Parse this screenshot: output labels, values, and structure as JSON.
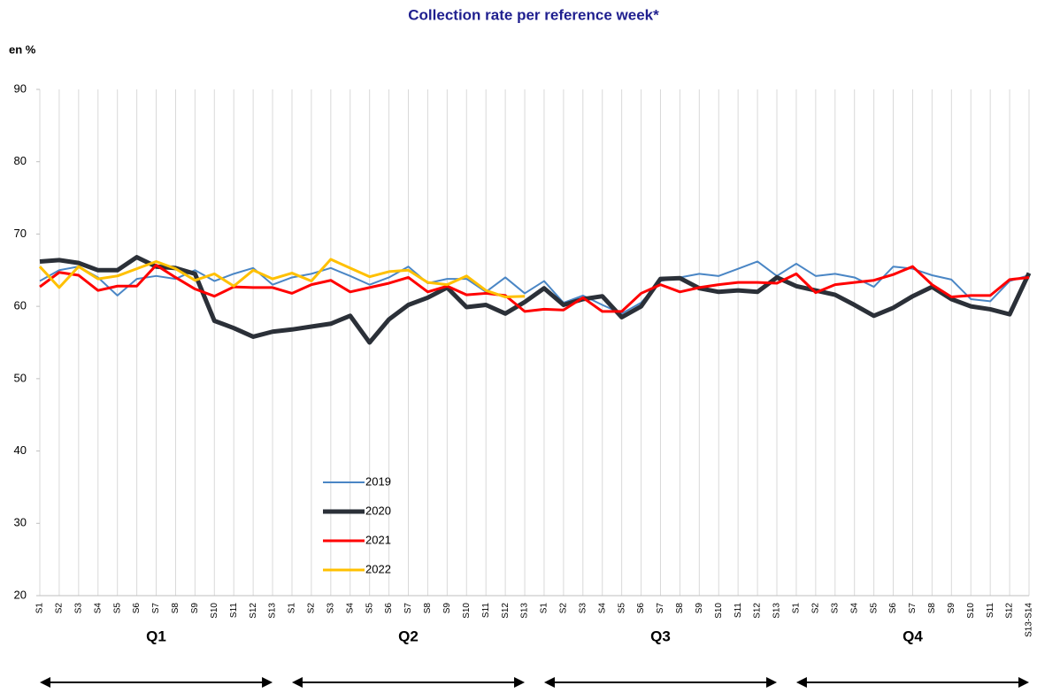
{
  "chart_data": {
    "type": "line",
    "title": "Collection rate per reference week*",
    "y_unit_label": "en %",
    "categories": [
      "S1",
      "S2",
      "S3",
      "S4",
      "S5",
      "S6",
      "S7",
      "S8",
      "S9",
      "S10",
      "S11",
      "S12",
      "S13",
      "S1",
      "S2",
      "S3",
      "S4",
      "S5",
      "S6",
      "S7",
      "S8",
      "S9",
      "S10",
      "S11",
      "S12",
      "S13",
      "S1",
      "S2",
      "S3",
      "S4",
      "S5",
      "S6",
      "S7",
      "S8",
      "S9",
      "S10",
      "S11",
      "S12",
      "S13",
      "S1",
      "S2",
      "S3",
      "S4",
      "S5",
      "S6",
      "S7",
      "S8",
      "S9",
      "S10",
      "S11",
      "S12",
      "S13-S14"
    ],
    "quarters": [
      "Q1",
      "Q2",
      "Q3",
      "Q4"
    ],
    "ylim": [
      20,
      90
    ],
    "yticks": [
      20,
      30,
      40,
      50,
      60,
      70,
      80,
      90
    ],
    "grid": "x",
    "series": [
      {
        "name": "2019",
        "color": "#4a86c5",
        "width": 2,
        "values": [
          63.5,
          65,
          65.5,
          64,
          61.5,
          63.8,
          64.2,
          63.8,
          65,
          63.5,
          64.5,
          65.3,
          63,
          64,
          64.5,
          65.3,
          64.2,
          63,
          64,
          65.5,
          63.2,
          63.8,
          63.8,
          62,
          64,
          61.8,
          63.5,
          60.5,
          61.5,
          60.2,
          59,
          60.5,
          63.5,
          64,
          64.5,
          64.2,
          65.2,
          66.2,
          64.2,
          65.9,
          64.2,
          64.5,
          64,
          62.7,
          65.5,
          65.2,
          64.3,
          63.7,
          61,
          60.7,
          63.5,
          64.3
        ]
      },
      {
        "name": "2020",
        "color": "#2b3038",
        "width": 5,
        "values": [
          66.2,
          66.4,
          66,
          65,
          65,
          66.8,
          65.5,
          65.3,
          64.5,
          58,
          57,
          55.8,
          56.5,
          56.8,
          57.2,
          57.6,
          58.7,
          55,
          58.2,
          60.2,
          61.2,
          62.6,
          59.9,
          60.2,
          59,
          60.6,
          62.5,
          60.2,
          61,
          61.4,
          58.5,
          60,
          63.8,
          63.9,
          62.5,
          62,
          62.2,
          62,
          64,
          62.8,
          62.2,
          61.6,
          60.2,
          58.7,
          59.8,
          61.4,
          62.7,
          61,
          60,
          59.6,
          58.9,
          64.6
        ]
      },
      {
        "name": "2021",
        "color": "#ff0000",
        "width": 3,
        "values": [
          62.7,
          64.7,
          64.3,
          62.2,
          62.8,
          62.8,
          65.7,
          64,
          62.4,
          61.4,
          62.7,
          62.6,
          62.6,
          61.8,
          63,
          63.6,
          62,
          62.6,
          63.2,
          64,
          62,
          62.8,
          61.6,
          61.8,
          61.5,
          59.3,
          59.6,
          59.5,
          61.2,
          59.3,
          59.3,
          61.8,
          63,
          62,
          62.6,
          63,
          63.3,
          63.3,
          63.2,
          64.5,
          61.9,
          63,
          63.3,
          63.6,
          64.4,
          65.5,
          63,
          61.3,
          61.5,
          61.5,
          63.7,
          64
        ]
      },
      {
        "name": "2022",
        "color": "#ffc000",
        "width": 3,
        "values": [
          65.5,
          62.6,
          65.5,
          63.8,
          64.2,
          65.2,
          66.2,
          65.2,
          63.6,
          64.5,
          62.8,
          65,
          63.8,
          64.6,
          63.5,
          66.5,
          65.3,
          64.1,
          64.8,
          65,
          63.3,
          63,
          64.2,
          62.2,
          61.3,
          61.4,
          null,
          null,
          null,
          null,
          null,
          null,
          null,
          null,
          null,
          null,
          null,
          null,
          null,
          null,
          null,
          null,
          null,
          null,
          null,
          null,
          null,
          null,
          null,
          null,
          null,
          null
        ]
      }
    ]
  }
}
